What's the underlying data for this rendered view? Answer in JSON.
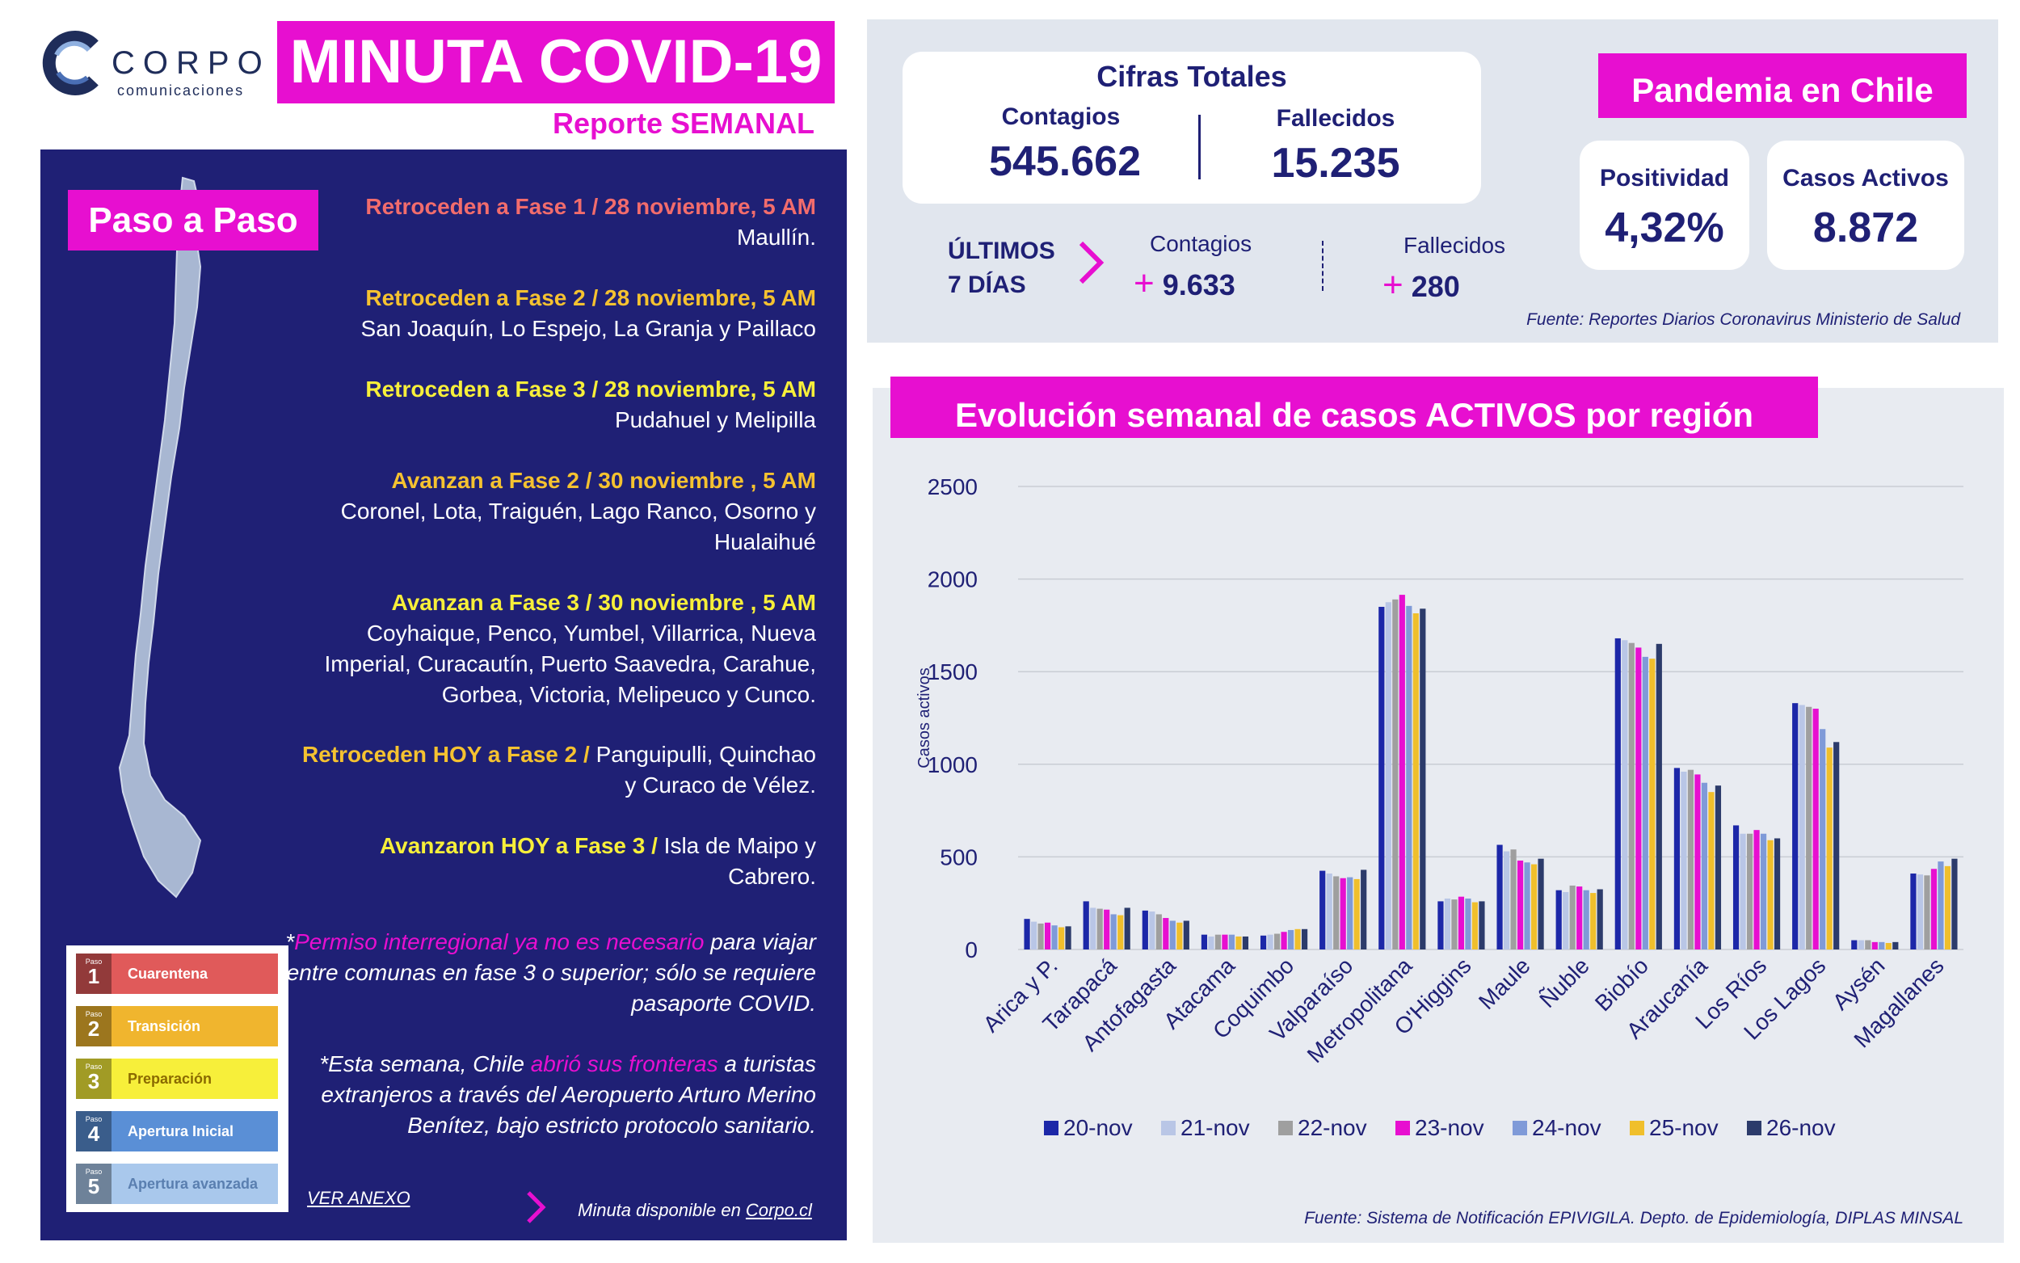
{
  "header": {
    "logo_word": "CORPO",
    "logo_sub": "comunicaciones",
    "title": "MINUTA COVID-19",
    "subtitle": "Reporte SEMANAL"
  },
  "paso": {
    "title": "Paso a Paso",
    "updates": [
      {
        "head": "Retroceden a Fase 1 / 28 noviembre, 5 AM",
        "body": "Maullín."
      },
      {
        "head": "Retroceden a Fase 2 / 28 noviembre, 5 AM",
        "body": "San Joaquín, Lo Espejo, La Granja y Paillaco"
      },
      {
        "head": "Retroceden a Fase 3 / 28 noviembre, 5 AM",
        "body": "Pudahuel y Melipilla"
      },
      {
        "head": "Avanzan a Fase 2 / 30 noviembre , 5 AM",
        "body": "Coronel, Lota, Traiguén, Lago Ranco, Osorno y Hualaihué"
      },
      {
        "head": "Avanzan a Fase 3 / 30 noviembre , 5 AM",
        "body": "Coyhaique, Penco, Yumbel, Villarrica, Nueva Imperial, Curacautín, Puerto Saavedra, Carahue, Gorbea, Victoria, Melipeuco y Cunco."
      },
      {
        "head": "Retroceden HOY a Fase 2 /",
        "body": " Panguipulli, Quinchao y Curaco de Vélez."
      },
      {
        "head": "Avanzaron HOY a Fase 3 /",
        "body": " Isla de Maipo y Cabrero."
      }
    ],
    "note1": {
      "a": "*",
      "pink": "Permiso interregional ya no es necesario",
      "b": " para viajar entre comunas en fase 3 o superior; sólo se requiere pasaporte COVID."
    },
    "note2": {
      "a": "*Esta semana, Chile ",
      "pink": "abrió sus fronteras",
      "b": " a turistas extranjeros a través del Aeropuerto Arturo Merino Benítez, bajo estricto protocolo sanitario."
    },
    "phases": [
      {
        "tag": "Paso",
        "num": "1",
        "label": "Cuarentena",
        "color": "#e05a5a"
      },
      {
        "tag": "Paso",
        "num": "2",
        "label": "Transición",
        "color": "#f0b52e"
      },
      {
        "tag": "Paso",
        "num": "3",
        "label": "Preparación",
        "color": "#f7ef3a"
      },
      {
        "tag": "Paso",
        "num": "4",
        "label": "Apertura Inicial",
        "color": "#5a8fd6"
      },
      {
        "tag": "Paso",
        "num": "5",
        "label": "Apertura avanzada",
        "color": "#a9c8ec"
      }
    ],
    "anexo": "VER ANEXO",
    "minuta_text": "Minuta disponible en ",
    "minuta_link": "Corpo.cl"
  },
  "cifras": {
    "title": "Cifras Totales",
    "contagios_label": "Contagios",
    "contagios_value": "545.662",
    "fallecidos_label": "Fallecidos",
    "fallecidos_value": "15.235"
  },
  "pandemia": {
    "title": "Pandemia en Chile",
    "positividad_label": "Positividad",
    "positividad_value": "4,32%",
    "activos_label": "Casos Activos",
    "activos_value": "8.872"
  },
  "semana": {
    "label_1": "ÚLTIMOS",
    "label_2": "7 DÍAS",
    "contagios_label": "Contagios",
    "contagios_value": "9.633",
    "fallecidos_label": "Fallecidos",
    "fallecidos_value": "280",
    "plus": "+"
  },
  "fuente1": "Fuente: Reportes Diarios Coronavirus Ministerio de Salud",
  "fuente2": "Fuente: Sistema de Notificación EPIVIGILA. Depto. de Epidemiología, DIPLAS MINSAL",
  "colors": {
    "accent": "#e70fd0",
    "navy": "#1f2075"
  },
  "chart_data": {
    "type": "bar",
    "title": "Evolución semanal de casos ACTIVOS por región",
    "ylabel": "Casos activos",
    "ylim": [
      0,
      2500
    ],
    "yticks": [
      0,
      500,
      1000,
      1500,
      2000,
      2500
    ],
    "grid": true,
    "legend": "bottom",
    "categories": [
      "Arica y P.",
      "Tarapacá",
      "Antofagasta",
      "Atacama",
      "Coquimbo",
      "Valparaíso",
      "Metropolitana",
      "O'Higgins",
      "Maule",
      "Ñuble",
      "Biobío",
      "Araucanía",
      "Los Ríos",
      "Los Lagos",
      "Aysén",
      "Magallanes"
    ],
    "series": [
      {
        "name": "20-nov",
        "color": "#1c27a8",
        "values": [
          165,
          260,
          210,
          80,
          75,
          425,
          1850,
          260,
          565,
          320,
          1680,
          980,
          670,
          1330,
          50,
          410
        ]
      },
      {
        "name": "21-nov",
        "color": "#b9c6e6",
        "values": [
          150,
          225,
          205,
          70,
          80,
          410,
          1875,
          275,
          530,
          310,
          1670,
          960,
          625,
          1320,
          50,
          405
        ]
      },
      {
        "name": "22-nov",
        "color": "#9f9f9f",
        "values": [
          140,
          220,
          190,
          80,
          85,
          395,
          1890,
          270,
          540,
          345,
          1655,
          970,
          625,
          1310,
          50,
          400
        ]
      },
      {
        "name": "23-nov",
        "color": "#e70fd0",
        "values": [
          145,
          215,
          170,
          80,
          95,
          385,
          1915,
          285,
          480,
          340,
          1630,
          945,
          645,
          1300,
          40,
          435
        ]
      },
      {
        "name": "24-nov",
        "color": "#7f9ad8",
        "values": [
          130,
          190,
          155,
          80,
          105,
          390,
          1855,
          275,
          470,
          320,
          1580,
          900,
          625,
          1190,
          40,
          475
        ]
      },
      {
        "name": "25-nov",
        "color": "#f0bf2c",
        "values": [
          120,
          185,
          145,
          70,
          110,
          380,
          1815,
          255,
          460,
          305,
          1570,
          850,
          590,
          1090,
          35,
          450
        ]
      },
      {
        "name": "26-nov",
        "color": "#2c3b6b",
        "values": [
          125,
          225,
          155,
          70,
          110,
          430,
          1840,
          260,
          490,
          325,
          1650,
          885,
          600,
          1120,
          40,
          490
        ]
      }
    ]
  }
}
